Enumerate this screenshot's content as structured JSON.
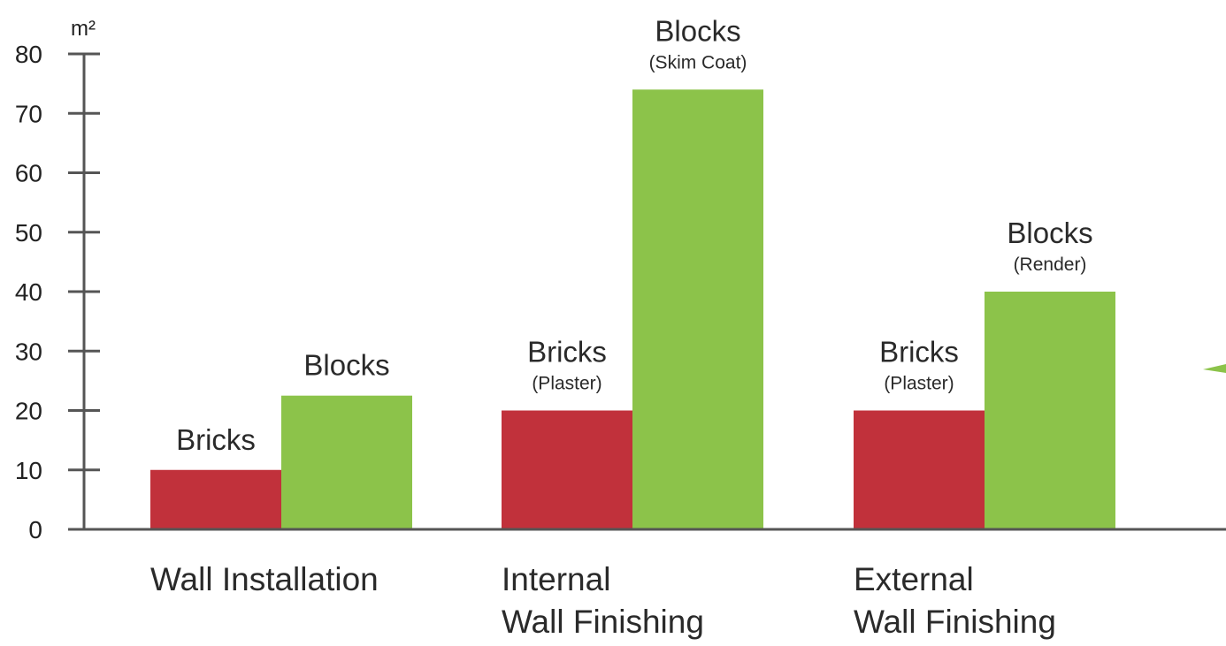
{
  "chart_data": {
    "type": "bar",
    "unit": "m²",
    "ylim": [
      0,
      80
    ],
    "yticks": [
      "0",
      "10",
      "20",
      "30",
      "40",
      "50",
      "60",
      "70",
      "80"
    ],
    "grid": false,
    "legend": "none",
    "categories": [
      {
        "lines": [
          "Wall Installation"
        ]
      },
      {
        "lines": [
          "Internal",
          "Wall Finishing"
        ]
      },
      {
        "lines": [
          "External",
          "Wall Finishing"
        ]
      }
    ],
    "series": [
      {
        "color": "#c1313b",
        "values": [
          10,
          20,
          20
        ],
        "labels": [
          {
            "main": "Bricks",
            "sub": ""
          },
          {
            "main": "Bricks",
            "sub": "(Plaster)"
          },
          {
            "main": "Bricks",
            "sub": "(Plaster)"
          }
        ]
      },
      {
        "color": "#8cc34a",
        "values": [
          22.5,
          74,
          40
        ],
        "labels": [
          {
            "main": "Blocks",
            "sub": ""
          },
          {
            "main": "Blocks",
            "sub": "(Skim Coat)"
          },
          {
            "main": "Blocks",
            "sub": "(Render)"
          }
        ]
      }
    ]
  }
}
